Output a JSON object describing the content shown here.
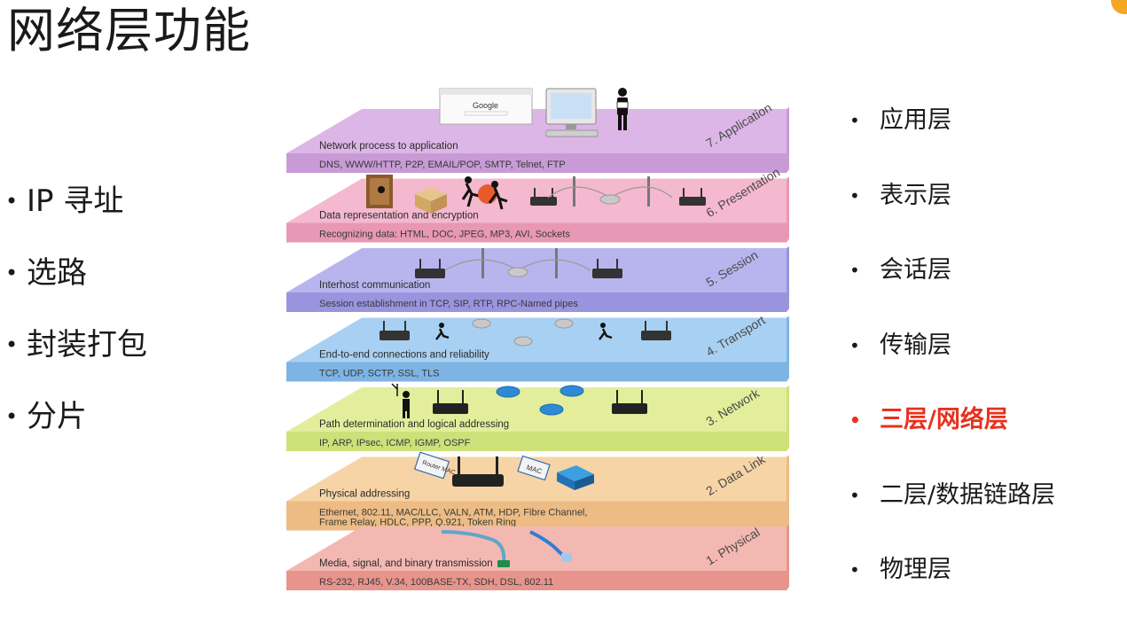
{
  "title": "网络层功能",
  "left_items": [
    "IP 寻址",
    "选路",
    "封装打包",
    "分片"
  ],
  "right_items": [
    {
      "label": "应用层",
      "highlight": false
    },
    {
      "label": "表示层",
      "highlight": false
    },
    {
      "label": "会话层",
      "highlight": false
    },
    {
      "label": "传输层",
      "highlight": false
    },
    {
      "label": "三层/网络层",
      "highlight": true
    },
    {
      "label": "二层/数据链路层",
      "highlight": false
    },
    {
      "label": "物理层",
      "highlight": false
    }
  ],
  "highlight_color": "#e8311e",
  "osi_layers": [
    {
      "label": "7. Application",
      "desc": "Network process to application",
      "protocols": [
        "DNS, WWW/HTTP, P2P, EMAIL/POP, SMTP, Telnet, FTP"
      ],
      "top_color": "#dcb6e6",
      "front_color": "#c89ad6"
    },
    {
      "label": "6. Presentation",
      "desc": "Data representation and encryption",
      "protocols": [
        "Recognizing data: HTML, DOC, JPEG, MP3, AVI, Sockets"
      ],
      "top_color": "#f4b8cf",
      "front_color": "#e898b4"
    },
    {
      "label": "5. Session",
      "desc": "Interhost communication",
      "protocols": [
        "Session establishment in TCP, SIP, RTP, RPC-Named pipes"
      ],
      "top_color": "#b8b4ee",
      "front_color": "#9a94de"
    },
    {
      "label": "4. Transport",
      "desc": "End-to-end connections and reliability",
      "protocols": [
        "TCP, UDP, SCTP, SSL, TLS"
      ],
      "top_color": "#a8d0f2",
      "front_color": "#7eb4e4"
    },
    {
      "label": "3. Network",
      "desc": "Path determination and logical addressing",
      "protocols": [
        "IP, ARP, IPsec, ICMP, IGMP, OSPF"
      ],
      "top_color": "#e2ee9c",
      "front_color": "#cde07a"
    },
    {
      "label": "2. Data Link",
      "desc": "Physical addressing",
      "protocols": [
        "Ethernet, 802.11, MAC/LLC, VALN, ATM, HDP, Fibre Channel,",
        "Frame Relay, HDLC,  PPP, Q.921, Token Ring"
      ],
      "top_color": "#f6d4a6",
      "front_color": "#ecbc84"
    },
    {
      "label": "1. Physical",
      "desc": "Media, signal, and binary transmission",
      "protocols": [
        "RS-232, RJ45, V.34, 100BASE-TX, SDH, DSL, 802.11"
      ],
      "top_color": "#f4b8b2",
      "front_color": "#e6948c"
    }
  ],
  "icon_labels": {
    "google": "Google",
    "router_mac": "Router MAC",
    "mac": "MAC"
  }
}
